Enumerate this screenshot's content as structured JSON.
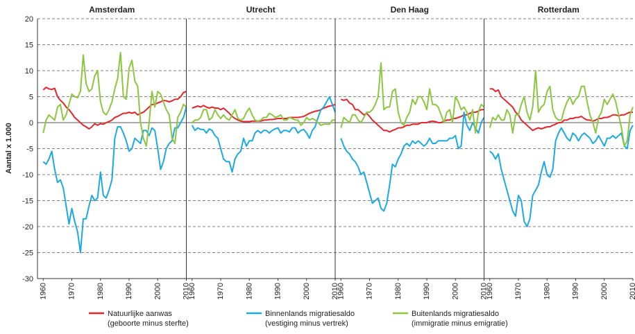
{
  "chart_data": {
    "type": "line",
    "ylabel": "Aantal x 1.000",
    "panels": [
      "Amsterdam",
      "Utrecht",
      "Den Haag",
      "Rotterdam"
    ],
    "x": [
      1960,
      1961,
      1962,
      1963,
      1964,
      1965,
      1966,
      1967,
      1968,
      1969,
      1970,
      1971,
      1972,
      1973,
      1974,
      1975,
      1976,
      1977,
      1978,
      1979,
      1980,
      1981,
      1982,
      1983,
      1984,
      1985,
      1986,
      1987,
      1988,
      1989,
      1990,
      1991,
      1992,
      1993,
      1994,
      1995,
      1996,
      1997,
      1998,
      1999,
      2000,
      2001,
      2002,
      2003,
      2004,
      2005,
      2006,
      2007,
      2008,
      2009,
      2010
    ],
    "xlim": [
      1958,
      2010
    ],
    "xticks": [
      1960,
      1970,
      1980,
      1990,
      2000,
      2010
    ],
    "ylim": [
      -30,
      20
    ],
    "yticks": [
      -30,
      -25,
      -20,
      -15,
      -10,
      -5,
      0,
      5,
      10,
      15,
      20
    ],
    "grid": true,
    "series": [
      {
        "name": "Natuurlijke aanwas\n(geboorte minus sterfte)",
        "color": "#e3262c",
        "values": [
          [
            6.3,
            6.8,
            6.5,
            6.4,
            6.6,
            5,
            4.3,
            3.8,
            3,
            2.5,
            1.8,
            1,
            0.5,
            0,
            -0.5,
            -0.8,
            -1.2,
            -0.8,
            -0.2,
            -0.5,
            -0.2,
            -0.3,
            0,
            0.2,
            0.5,
            1,
            1.2,
            1.5,
            1.8,
            1.8,
            2,
            1.8,
            2,
            1.5,
            1.8,
            2,
            2.5,
            3,
            3.5,
            3.5,
            3.8,
            4,
            4.3,
            4.2,
            4,
            4.2,
            4.5,
            4.5,
            5,
            5.8,
            6
          ],
          [
            2.8,
            3,
            3.2,
            3,
            3.3,
            3,
            2.8,
            3,
            2.8,
            2.8,
            2.5,
            2.8,
            2.3,
            1.8,
            1.2,
            0.8,
            0.5,
            0.3,
            0.2,
            0.2,
            0.2,
            0.3,
            0.3,
            0.3,
            0.3,
            0.5,
            0.5,
            0.6,
            0.6,
            0.7,
            0.8,
            0.8,
            0.8,
            0.8,
            1,
            1,
            1,
            1,
            1.1,
            1.2,
            1.5,
            1.8,
            2,
            2.2,
            2.3,
            2.5,
            2.8,
            3,
            3.2,
            3.3,
            3.5
          ],
          [
            4.5,
            4.3,
            4.5,
            3.8,
            3.5,
            2.5,
            2.5,
            2,
            1.5,
            1.8,
            1.2,
            0.5,
            0,
            -0.5,
            -1,
            -1.5,
            -1.5,
            -1.8,
            -1.5,
            -1.3,
            -1,
            -1,
            -0.8,
            -0.5,
            -0.5,
            -0.3,
            -0.3,
            -0.3,
            0,
            0,
            0,
            0.2,
            0.3,
            0.2,
            0,
            0,
            0.3,
            0.5,
            0.5,
            0.8,
            0.8,
            1,
            1.2,
            1.5,
            1.5,
            1.8,
            2,
            2,
            2.2,
            2.5,
            2.5
          ],
          [
            6.5,
            6.5,
            6,
            6.3,
            5,
            4.5,
            4,
            3.5,
            3,
            2,
            1.5,
            0.5,
            0,
            -0.5,
            -1,
            -1.5,
            -1.2,
            -1,
            -1.2,
            -1,
            -0.8,
            -0.8,
            -0.5,
            -0.3,
            0,
            0,
            0.5,
            0.5,
            0.8,
            0.8,
            1,
            1,
            1.2,
            0.8,
            0.5,
            0.5,
            0.3,
            0.5,
            0.8,
            0.8,
            1,
            1,
            1.2,
            1.5,
            1.5,
            1.3,
            1.5,
            1.5,
            1.8,
            2,
            2
          ]
        ]
      },
      {
        "name": "Binnenlands migratiesaldo\n(vestiging minus vertrek)",
        "color": "#1ba9e1",
        "values": [
          [
            -7.5,
            -8,
            -7,
            -5.5,
            -9,
            -11.5,
            -11,
            -12.5,
            -16,
            -19.5,
            -16.5,
            -19,
            -21,
            -25,
            -18.5,
            -18.5,
            -16,
            -14,
            -15,
            -14.5,
            -9.5,
            -14,
            -14.5,
            -13,
            -11,
            -3,
            -0.8,
            -0.8,
            -2,
            -3.5,
            -5.5,
            -5,
            -3,
            -3.5,
            -4,
            -1.5,
            -1.5,
            -2.5,
            -1,
            -1.5,
            -5,
            -9,
            -7.5,
            -5,
            -4,
            -3.5,
            -1,
            -1,
            0,
            1,
            3
          ],
          [
            -0.5,
            -1.5,
            -1,
            -1.3,
            -1.3,
            -2,
            -1.2,
            -1.5,
            -2.5,
            -3,
            -5,
            -7,
            -7.5,
            -7.5,
            -9.5,
            -7,
            -6,
            -5.5,
            -3,
            -4.5,
            -3.5,
            -3.5,
            -2,
            -1.5,
            -2,
            -1.5,
            -1.5,
            -2,
            -1.5,
            -1.2,
            -1,
            -2,
            -1.5,
            -1.5,
            -1.8,
            -1,
            -1,
            -2,
            -1.5,
            -1.3,
            -2,
            -3,
            -1.5,
            -0.8,
            1,
            2.5,
            3,
            4,
            5,
            3.5,
            2
          ],
          [
            -3,
            -4.5,
            -5.5,
            -6,
            -7,
            -7.5,
            -8.5,
            -10,
            -9.5,
            -11.5,
            -13.5,
            -15.5,
            -15,
            -14.5,
            -16.5,
            -17,
            -15.5,
            -12,
            -8,
            -8.5,
            -7,
            -6,
            -4.5,
            -4,
            -4.5,
            -3.5,
            -4,
            -3.5,
            -4,
            -4.5,
            -4,
            -3,
            -4,
            -4,
            -3.5,
            -3.5,
            -3.5,
            -3.5,
            -3,
            -3,
            -2.5,
            -5,
            -4.5,
            2,
            -0.5,
            -1.5,
            0,
            -1,
            -2,
            0,
            1
          ],
          [
            -5.5,
            -6,
            -7,
            -6,
            -9,
            -11,
            -13,
            -15,
            -17,
            -18,
            -14,
            -15,
            -19,
            -20,
            -18.5,
            -14,
            -13,
            -12,
            -9.5,
            -7.5,
            -10,
            -10.5,
            -9,
            -3.5,
            -2,
            -1,
            -2,
            -3,
            -3.5,
            -2,
            -2.5,
            -3.5,
            -2.5,
            -2,
            -2.5,
            -3,
            -4,
            -3.5,
            -2.5,
            -3.5,
            -4.5,
            -3,
            -3,
            -2.5,
            -3,
            -2.5,
            -2,
            -4.5,
            -5,
            -1.5,
            -0.5
          ]
        ]
      },
      {
        "name": "Buitenlands migratiesaldo\n(immigratie minus emigratie)",
        "color": "#8cc63f",
        "values": [
          [
            -2,
            0.5,
            1.5,
            1,
            0.5,
            3,
            3.5,
            0.5,
            1.5,
            3.5,
            5.5,
            5,
            4.8,
            6,
            13,
            7.5,
            6,
            6.5,
            9,
            10,
            4,
            2,
            1.5,
            2.5,
            4,
            6.5,
            8.5,
            13.5,
            5,
            4.5,
            10.5,
            12,
            8,
            7,
            0,
            -3,
            -4.5,
            0,
            6,
            3,
            6,
            5.5,
            4,
            2.5,
            1.5,
            -3,
            -4,
            1,
            2,
            3.5,
            3
          ],
          [
            0,
            0.5,
            0.5,
            1,
            2.5,
            2.5,
            0.5,
            1,
            2.5,
            1.5,
            0.8,
            1.5,
            0.8,
            0.5,
            1.5,
            2.5,
            0.8,
            0.5,
            0.8,
            2,
            2.8,
            1.5,
            0.5,
            0.3,
            0.5,
            1,
            1,
            1.8,
            1.5,
            1,
            1.2,
            1.5,
            0.5,
            0.5,
            1,
            0.8,
            0.5,
            0.5,
            -0.5,
            0,
            1,
            0.5,
            0.8,
            0.5,
            0,
            -0.5,
            -0.3,
            -0.3,
            -0.3,
            0.5,
            0.5
          ],
          [
            -1,
            1,
            0.5,
            0,
            1.5,
            1.5,
            0.5,
            0,
            1,
            2,
            2,
            2.5,
            3.5,
            5,
            11.5,
            2.5,
            3,
            3,
            6,
            6.5,
            2,
            0,
            -0.5,
            1,
            2,
            4.5,
            3.5,
            5,
            5,
            4,
            2.5,
            6.5,
            3.5,
            3.5,
            3,
            1.5,
            0,
            2,
            2.5,
            0,
            5,
            4,
            2.5,
            3,
            2,
            0.5,
            2.5,
            -2,
            2,
            3.5,
            3
          ],
          [
            -1,
            1,
            0.5,
            1.5,
            0.5,
            0.5,
            2.5,
            1.5,
            -2,
            1.5,
            1.5,
            3.5,
            5,
            2,
            0.5,
            3,
            10,
            2,
            3,
            3.5,
            6,
            7,
            2.5,
            1,
            0.5,
            0.5,
            2.5,
            4,
            5,
            3.5,
            4.5,
            5,
            7,
            7,
            4,
            1.5,
            0,
            -2,
            1,
            2,
            4.5,
            3.5,
            4.5,
            5.5,
            4,
            1.5,
            -1,
            -4.5,
            -3.5,
            1.5,
            3
          ]
        ]
      }
    ]
  }
}
